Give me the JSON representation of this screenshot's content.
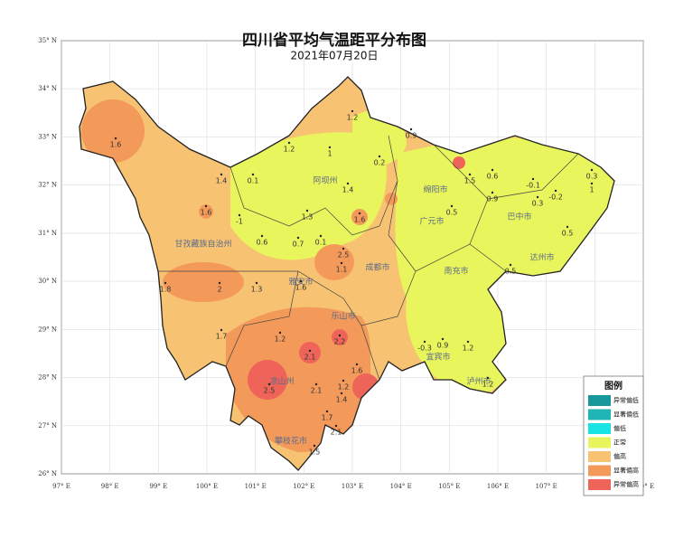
{
  "title": "四川省平均气温距平分布图",
  "subtitle": "2021年07月20日",
  "lon_ticks": [
    {
      "value": 97,
      "label": "97° E"
    },
    {
      "value": 98,
      "label": "98° E"
    },
    {
      "value": 99,
      "label": "99° E"
    },
    {
      "value": 100,
      "label": "100° E"
    },
    {
      "value": 101,
      "label": "101° E"
    },
    {
      "value": 102,
      "label": "102° E"
    },
    {
      "value": 103,
      "label": "103° E"
    },
    {
      "value": 104,
      "label": "104° E"
    },
    {
      "value": 105,
      "label": "105° E"
    },
    {
      "value": 106,
      "label": "106° E"
    },
    {
      "value": 107,
      "label": "107° E"
    },
    {
      "value": 108,
      "label": "108° E"
    },
    {
      "value": 109,
      "label": "109° E"
    }
  ],
  "lat_ticks": [
    {
      "value": 26,
      "label": "26° N"
    },
    {
      "value": 27,
      "label": "27° N"
    },
    {
      "value": 28,
      "label": "28° N"
    },
    {
      "value": 29,
      "label": "29° N"
    },
    {
      "value": 30,
      "label": "30° N"
    },
    {
      "value": 31,
      "label": "31° N"
    },
    {
      "value": 32,
      "label": "32° N"
    },
    {
      "value": 33,
      "label": "33° N"
    },
    {
      "value": 34,
      "label": "34° N"
    },
    {
      "value": 35,
      "label": "35° N"
    }
  ],
  "legend": {
    "title": "图例",
    "items": [
      {
        "label": "异常偏低",
        "color": "#17989a"
      },
      {
        "label": "显著偏低",
        "color": "#1fb5b5"
      },
      {
        "label": "偏低",
        "color": "#19e4e4"
      },
      {
        "label": "正常",
        "color": "#e9f55c"
      },
      {
        "label": "偏高",
        "color": "#f7c372"
      },
      {
        "label": "显著偏高",
        "color": "#f39a5a"
      },
      {
        "label": "异常偏高",
        "color": "#ef6458"
      }
    ]
  },
  "regions": [
    "阿坝州",
    "甘孜藏族自治州",
    "凉山州",
    "雅安市",
    "成都市",
    "乐山市",
    "绵阳市",
    "广元市",
    "巴中市",
    "达州市",
    "南充市",
    "宜宾市",
    "泸州市",
    "攀枝花市"
  ],
  "stations": [
    1.6,
    1.2,
    1.2,
    1,
    0.2,
    0.9,
    1.4,
    0.1,
    1.4,
    1.6,
    -1,
    1.3,
    1.6,
    0.6,
    0.7,
    0.1,
    1.8,
    2,
    1.3,
    1.6,
    2.5,
    1.1,
    1.7,
    1.2,
    2.2,
    2.1,
    2.5,
    2.1,
    1.6,
    1.2,
    1.4,
    1.7,
    1.5,
    2.1,
    -0.1,
    0.3,
    0.5,
    -0.2,
    0.3,
    1,
    0.5,
    0.9,
    0.5,
    -0.3,
    0.9,
    1.2,
    1.2,
    1.5,
    0.6
  ]
}
